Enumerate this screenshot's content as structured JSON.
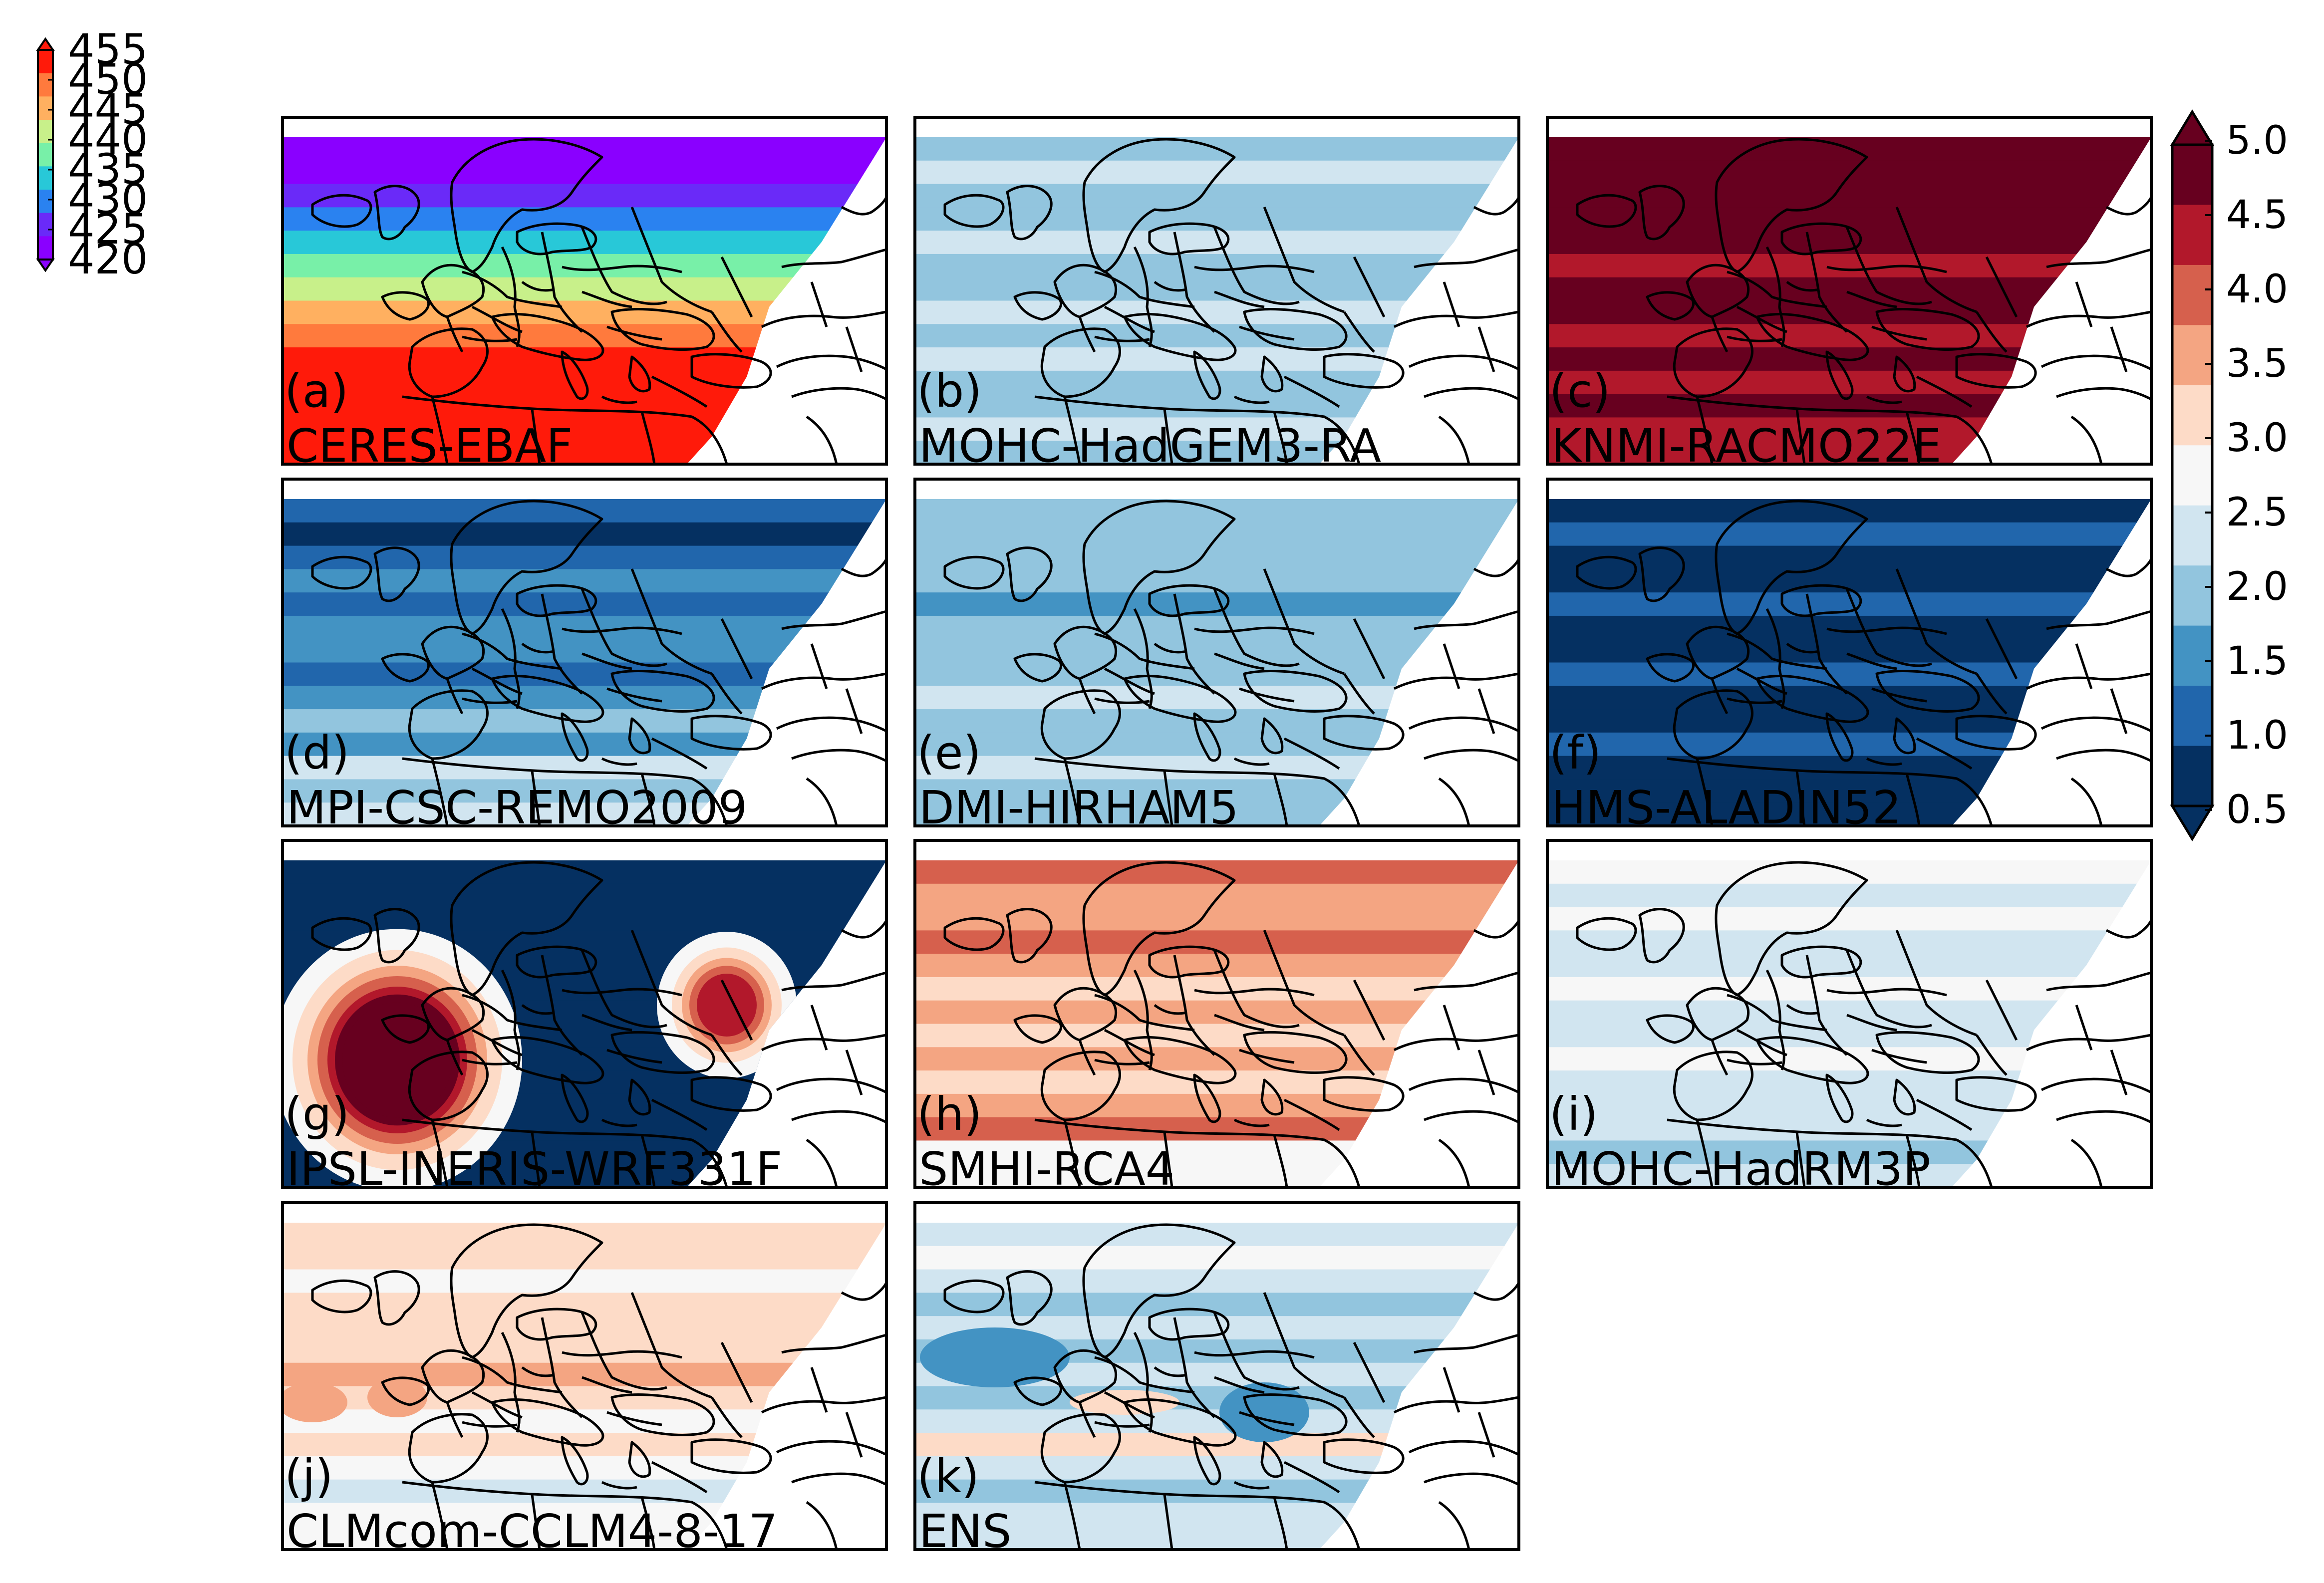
{
  "left_colorbar": {
    "ticks": [
      "455",
      "450",
      "445",
      "440",
      "435",
      "430",
      "425",
      "420"
    ],
    "colors": [
      "#ff1a0a",
      "#ff7a3d",
      "#ffb060",
      "#c8f08a",
      "#78f0a8",
      "#28c8d8",
      "#2a82f0",
      "#6a2af8",
      "#8a00ff"
    ]
  },
  "right_colorbar": {
    "ticks": [
      "5.0",
      "4.5",
      "4.0",
      "3.5",
      "3.0",
      "2.5",
      "2.0",
      "1.5",
      "1.0",
      "0.5"
    ],
    "colors": [
      "#67001f",
      "#b2182b",
      "#d6604d",
      "#f4a582",
      "#fddbc7",
      "#f7f7f7",
      "#d1e5f0",
      "#92c5de",
      "#4393c3",
      "#2166ac",
      "#053061"
    ]
  },
  "panels": [
    {
      "label": "(a)",
      "model": "CERES-EBAF",
      "style": "ceres"
    },
    {
      "label": "(b)",
      "model": "MOHC-HadGEM3-RA",
      "style": "blue_light"
    },
    {
      "label": "(c)",
      "model": "KNMI-RACMO22E",
      "style": "darkred"
    },
    {
      "label": "(d)",
      "model": "MPI-CSC-REMO2009",
      "style": "blue_mid"
    },
    {
      "label": "(e)",
      "model": "DMI-HIRHAM5",
      "style": "blue_light2"
    },
    {
      "label": "(f)",
      "model": "HMS-ALADIN52",
      "style": "blue_dark"
    },
    {
      "label": "(g)",
      "model": "IPSL-INERIS-WRF331F",
      "style": "ipsl"
    },
    {
      "label": "(h)",
      "model": "SMHI-RCA4",
      "style": "orange"
    },
    {
      "label": "(i)",
      "model": "MOHC-HadRM3P",
      "style": "pale"
    },
    {
      "label": "(j)",
      "model": "CLMcom-CCLM4-8-17",
      "style": "lightred"
    },
    {
      "label": "(k)",
      "model": "ENS",
      "style": "ens"
    }
  ]
}
